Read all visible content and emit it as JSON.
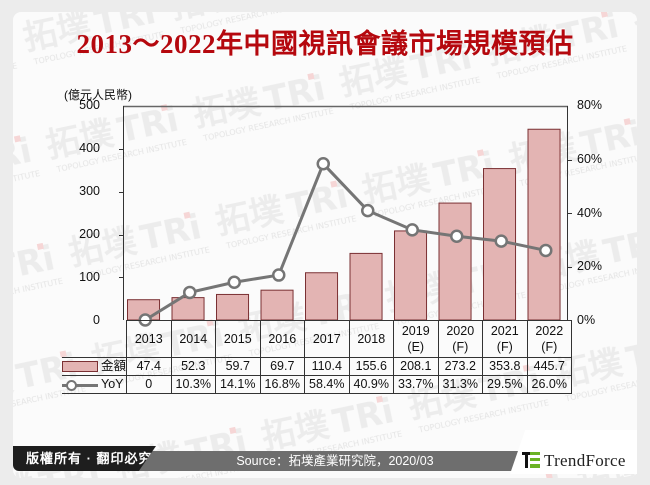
{
  "title": "2013～2022年中國視訊會議市場規模預估",
  "unit_label": "(億元人民幣)",
  "left_axis": {
    "ticks": [
      "500",
      "400",
      "300",
      "200",
      "100",
      "0"
    ]
  },
  "right_axis": {
    "ticks": [
      "80%",
      "60%",
      "40%",
      "20%",
      "0%"
    ]
  },
  "table": {
    "columns": [
      {
        "year": "2013",
        "sub": ""
      },
      {
        "year": "2014",
        "sub": ""
      },
      {
        "year": "2015",
        "sub": ""
      },
      {
        "year": "2016",
        "sub": ""
      },
      {
        "year": "2017",
        "sub": ""
      },
      {
        "year": "2018",
        "sub": ""
      },
      {
        "year": "2019",
        "sub": "(E)"
      },
      {
        "year": "2020",
        "sub": "(F)"
      },
      {
        "year": "2021",
        "sub": "(F)"
      },
      {
        "year": "2022",
        "sub": "(F)"
      }
    ],
    "amount_label": "金額",
    "amount_values": [
      "47.4",
      "52.3",
      "59.7",
      "69.7",
      "110.4",
      "155.6",
      "208.1",
      "273.2",
      "353.8",
      "445.7"
    ],
    "yoy_label": "YoY",
    "yoy_values": [
      "0",
      "10.3%",
      "14.1%",
      "16.8%",
      "58.4%",
      "40.9%",
      "33.7%",
      "31.3%",
      "29.5%",
      "26.0%"
    ]
  },
  "footer": {
    "copyright": "版權所有 · 翻印必究",
    "source": "Source：拓墣產業研究院，2020/03",
    "brand": "TrendForce"
  },
  "colors": {
    "title": "#b5080e",
    "bar_fill": "#e3b4b3",
    "bar_border": "#7a3033",
    "line": "#757575"
  },
  "chart_data": {
    "type": "bar+line",
    "title": "2013～2022年中國視訊會議市場規模預估",
    "categories": [
      "2013",
      "2014",
      "2015",
      "2016",
      "2017",
      "2018",
      "2019(E)",
      "2020(F)",
      "2021(F)",
      "2022(F)"
    ],
    "series": [
      {
        "name": "金額",
        "type": "bar",
        "axis": "left",
        "values": [
          47.4,
          52.3,
          59.7,
          69.7,
          110.4,
          155.6,
          208.1,
          273.2,
          353.8,
          445.7
        ]
      },
      {
        "name": "YoY",
        "type": "line",
        "axis": "right",
        "values": [
          0,
          10.3,
          14.1,
          16.8,
          58.4,
          40.9,
          33.7,
          31.3,
          29.5,
          26.0
        ]
      }
    ],
    "ylabel": "(億元人民幣)",
    "ylim": [
      0,
      500
    ],
    "y2lim": [
      0,
      80
    ],
    "y2_format": "percent",
    "legend_position": "table-left",
    "grid": false
  }
}
